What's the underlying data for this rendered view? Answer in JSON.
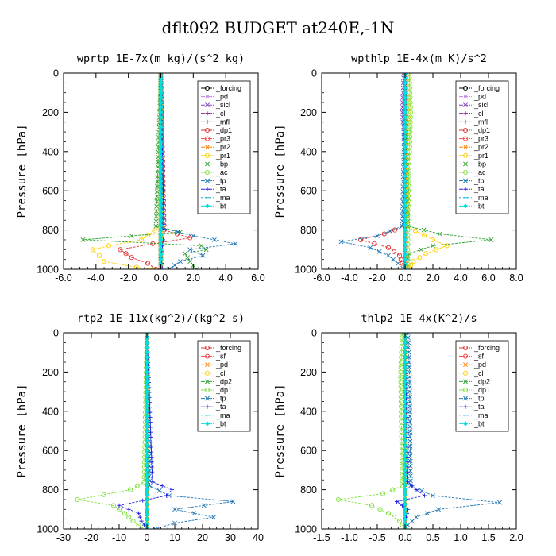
{
  "page_title": "dflt092  BUDGET at240E,-1N",
  "chart_data": [
    {
      "type": "line",
      "title": "wprtp  1E-7x(m kg)/(s^2 kg)",
      "ylabel": "Pressure [hPa]",
      "xlim": [
        -6,
        6
      ],
      "ylim": [
        0,
        1000
      ],
      "y_inverted": true,
      "xticks": [
        "-6.0",
        "-4.0",
        "-2.0",
        "0.0",
        "2.0",
        "4.0",
        "6.0"
      ],
      "yticks": [
        "0",
        "200",
        "400",
        "600",
        "800",
        "1000"
      ],
      "legend_position": "top-right",
      "series": [
        {
          "name": "_forcing",
          "color": "#000000",
          "marker": "o",
          "y": [
            0,
            1000
          ],
          "x": [
            0,
            0
          ]
        },
        {
          "name": "_pd",
          "color": "#c080e0",
          "marker": "x",
          "y": [
            0,
            1000
          ],
          "x": [
            0,
            0
          ]
        },
        {
          "name": "_sicl",
          "color": "#8040c0",
          "marker": "x",
          "y": [
            0,
            1000
          ],
          "x": [
            0,
            0
          ]
        },
        {
          "name": "_cl",
          "color": "#800080",
          "marker": "+",
          "y": [
            0,
            1000
          ],
          "x": [
            0,
            0
          ]
        },
        {
          "name": "_mfl",
          "color": "#a02050",
          "marker": "+",
          "y": [
            0,
            1000
          ],
          "x": [
            0,
            0
          ]
        },
        {
          "name": "_dp1",
          "color": "#e03030",
          "marker": "o",
          "y": [
            0,
            800,
            840,
            870,
            900,
            940,
            970,
            1000
          ],
          "x": [
            0,
            0.2,
            1.8,
            -0.5,
            -2.5,
            -1.8,
            -0.8,
            -0.3
          ]
        },
        {
          "name": "_pr3",
          "color": "#ff4040",
          "marker": "o",
          "y": [
            0,
            1000
          ],
          "x": [
            0,
            0
          ]
        },
        {
          "name": "_pr2",
          "color": "#ff8000",
          "marker": "x",
          "y": [
            0,
            1000
          ],
          "x": [
            0,
            0
          ]
        },
        {
          "name": "_pr1",
          "color": "#ffd000",
          "marker": "o",
          "y": [
            0,
            780,
            850,
            880,
            900,
            930,
            960,
            990,
            1000
          ],
          "x": [
            0,
            0,
            -1.2,
            -3.2,
            -4.2,
            -3.8,
            -3.5,
            -1.5,
            -0.5
          ]
        },
        {
          "name": "_bp",
          "color": "#30a030",
          "marker": "x",
          "y": [
            0,
            780,
            810,
            850,
            880,
            900,
            920,
            960,
            1000
          ],
          "x": [
            0,
            -0.3,
            1.2,
            -4.8,
            2.5,
            2.8,
            1.5,
            1.8,
            2.2
          ]
        },
        {
          "name": "_ac",
          "color": "#80e040",
          "marker": "o",
          "y": [
            0,
            1000
          ],
          "x": [
            0,
            0
          ]
        },
        {
          "name": "_tp",
          "color": "#1f77b4",
          "marker": "x",
          "y": [
            0,
            790,
            830,
            870,
            900,
            930,
            960,
            1000
          ],
          "x": [
            0,
            0.1,
            2.0,
            4.6,
            1.8,
            2.6,
            1.2,
            0.5
          ]
        },
        {
          "name": "_ta",
          "color": "#2020e0",
          "marker": "+",
          "y": [
            0,
            820,
            880,
            940,
            1000
          ],
          "x": [
            0,
            0.2,
            0.1,
            0.0,
            0.1
          ]
        },
        {
          "name": "_ma",
          "color": "#00b0e0",
          "marker": "-",
          "y": [
            0,
            1000
          ],
          "x": [
            0,
            0
          ]
        },
        {
          "name": "_bt",
          "color": "#00e0e0",
          "marker": "D",
          "y": [
            0,
            1000
          ],
          "x": [
            0,
            0
          ]
        }
      ]
    },
    {
      "type": "line",
      "title": "wpthlp  1E-4x(m K)/s^2",
      "ylabel": "Pressure [hPa]",
      "xlim": [
        -6,
        8
      ],
      "ylim": [
        0,
        1000
      ],
      "y_inverted": true,
      "xticks": [
        "-6.0",
        "-4.0",
        "-2.0",
        "0.0",
        "2.0",
        "4.0",
        "6.0",
        "8.0"
      ],
      "yticks": [
        "0",
        "200",
        "400",
        "600",
        "800",
        "1000"
      ],
      "legend_position": "top-right",
      "series": [
        {
          "name": "_forcing",
          "color": "#000000",
          "marker": "o",
          "y": [
            0,
            1000
          ],
          "x": [
            0,
            0
          ]
        },
        {
          "name": "_pd",
          "color": "#c080e0",
          "marker": "x",
          "y": [
            0,
            1000
          ],
          "x": [
            0,
            0
          ]
        },
        {
          "name": "_sicl",
          "color": "#8040c0",
          "marker": "x",
          "y": [
            0,
            200,
            400,
            1000
          ],
          "x": [
            -0.1,
            -0.2,
            0,
            0
          ]
        },
        {
          "name": "_cl",
          "color": "#800080",
          "marker": "+",
          "y": [
            0,
            1000
          ],
          "x": [
            0,
            0
          ]
        },
        {
          "name": "_mfl",
          "color": "#a02050",
          "marker": "+",
          "y": [
            0,
            1000
          ],
          "x": [
            0,
            0
          ]
        },
        {
          "name": "_dp1",
          "color": "#e03030",
          "marker": "o",
          "y": [
            0,
            780,
            820,
            850,
            890,
            930,
            970,
            1000
          ],
          "x": [
            0,
            0,
            -1.5,
            -3.2,
            -1.2,
            -0.4,
            -0.2,
            0
          ]
        },
        {
          "name": "_pr3",
          "color": "#ff4040",
          "marker": "o",
          "y": [
            0,
            1000
          ],
          "x": [
            0,
            0
          ]
        },
        {
          "name": "_pr2",
          "color": "#ff8000",
          "marker": "x",
          "y": [
            0,
            1000
          ],
          "x": [
            0,
            0
          ]
        },
        {
          "name": "_pr1",
          "color": "#ffd000",
          "marker": "o",
          "y": [
            0,
            200,
            780,
            850,
            880,
            920,
            960,
            1000
          ],
          "x": [
            0.2,
            0.2,
            0.1,
            2.0,
            3.0,
            1.5,
            0.6,
            0.2
          ]
        },
        {
          "name": "_bp",
          "color": "#30a030",
          "marker": "x",
          "y": [
            0,
            780,
            820,
            850,
            880,
            920,
            1000
          ],
          "x": [
            0,
            0.2,
            2.5,
            6.2,
            2.0,
            0.3,
            0
          ]
        },
        {
          "name": "_ac",
          "color": "#80e040",
          "marker": "o",
          "y": [
            0,
            200,
            700,
            1000
          ],
          "x": [
            0.3,
            0.4,
            0.2,
            0.2
          ]
        },
        {
          "name": "_tp",
          "color": "#1f77b4",
          "marker": "x",
          "y": [
            0,
            780,
            830,
            860,
            890,
            930,
            970,
            1000
          ],
          "x": [
            0,
            -0.2,
            -2.0,
            -4.6,
            -2.5,
            -1.2,
            -0.5,
            -0.1
          ]
        },
        {
          "name": "_ta",
          "color": "#2020e0",
          "marker": "+",
          "y": [
            0,
            1000
          ],
          "x": [
            0,
            0
          ]
        },
        {
          "name": "_ma",
          "color": "#00b0e0",
          "marker": "-",
          "y": [
            0,
            1000
          ],
          "x": [
            0,
            0
          ]
        },
        {
          "name": "_bt",
          "color": "#00e0e0",
          "marker": "D",
          "y": [
            0,
            1000
          ],
          "x": [
            0,
            0
          ]
        }
      ]
    },
    {
      "type": "line",
      "title": "rtp2  1E-11x(kg^2)/(kg^2 s)",
      "ylabel": "Pressure [hPa]",
      "xlim": [
        -30,
        40
      ],
      "ylim": [
        0,
        1000
      ],
      "y_inverted": true,
      "xticks": [
        "-30",
        "-20",
        "-10",
        "0",
        "10",
        "20",
        "30",
        "40"
      ],
      "yticks": [
        "0",
        "200",
        "400",
        "600",
        "800",
        "1000"
      ],
      "legend_position": "top-right",
      "series": [
        {
          "name": "_forcing",
          "color": "#e03030",
          "marker": "o",
          "y": [
            0,
            1000
          ],
          "x": [
            0,
            0
          ]
        },
        {
          "name": "_sf",
          "color": "#ff4040",
          "marker": "o",
          "y": [
            0,
            1000
          ],
          "x": [
            0,
            0
          ]
        },
        {
          "name": "_pd",
          "color": "#ff8000",
          "marker": "x",
          "y": [
            0,
            1000
          ],
          "x": [
            0,
            0
          ]
        },
        {
          "name": "_cl",
          "color": "#ffd000",
          "marker": "o",
          "y": [
            0,
            1000
          ],
          "x": [
            0,
            0
          ]
        },
        {
          "name": "_dp2",
          "color": "#30a030",
          "marker": "x",
          "y": [
            0,
            1000
          ],
          "x": [
            0,
            0
          ]
        },
        {
          "name": "_dp1",
          "color": "#80e040",
          "marker": "o",
          "y": [
            0,
            760,
            800,
            850,
            880,
            920,
            960,
            1000
          ],
          "x": [
            0,
            -1,
            -6,
            -25,
            -12,
            -8,
            -5,
            -1
          ]
        },
        {
          "name": "_tp",
          "color": "#1f77b4",
          "marker": "x",
          "y": [
            0,
            780,
            830,
            860,
            900,
            940,
            970,
            1000
          ],
          "x": [
            0,
            1,
            8,
            31,
            10,
            24,
            10,
            3
          ]
        },
        {
          "name": "_ta",
          "color": "#2020e0",
          "marker": "+",
          "y": [
            0,
            760,
            800,
            830,
            880,
            920,
            960,
            1000
          ],
          "x": [
            0,
            2,
            9,
            7,
            -10,
            -3,
            -2,
            0
          ]
        },
        {
          "name": "_ma",
          "color": "#00b0e0",
          "marker": "-",
          "y": [
            0,
            1000
          ],
          "x": [
            0,
            0
          ]
        },
        {
          "name": "_bt",
          "color": "#00e0e0",
          "marker": "D",
          "y": [
            0,
            1000
          ],
          "x": [
            0,
            0
          ]
        }
      ]
    },
    {
      "type": "line",
      "title": "thlp2  1E-4x(K^2)/s",
      "ylabel": "Pressure [hPa]",
      "xlim": [
        -1.5,
        2.0
      ],
      "ylim": [
        0,
        1000
      ],
      "y_inverted": true,
      "xticks": [
        "-1.5",
        "-1.0",
        "-0.5",
        "0.0",
        "0.5",
        "1.0",
        "1.5",
        "2.0"
      ],
      "yticks": [
        "0",
        "200",
        "400",
        "600",
        "800",
        "1000"
      ],
      "legend_position": "top-right",
      "series": [
        {
          "name": "_forcing",
          "color": "#e03030",
          "marker": "o",
          "y": [
            0,
            1000
          ],
          "x": [
            0,
            0
          ]
        },
        {
          "name": "_sf",
          "color": "#ff4040",
          "marker": "o",
          "y": [
            0,
            1000
          ],
          "x": [
            0,
            0
          ]
        },
        {
          "name": "_pd",
          "color": "#ff8000",
          "marker": "x",
          "y": [
            0,
            1000
          ],
          "x": [
            0,
            0
          ]
        },
        {
          "name": "_cl",
          "color": "#ffd000",
          "marker": "o",
          "y": [
            0,
            1000
          ],
          "x": [
            0,
            0
          ]
        },
        {
          "name": "_dp2",
          "color": "#30a030",
          "marker": "x",
          "y": [
            0,
            1000
          ],
          "x": [
            0,
            0
          ]
        },
        {
          "name": "_dp1",
          "color": "#80e040",
          "marker": "o",
          "y": [
            0,
            200,
            780,
            820,
            850,
            880,
            920,
            960,
            1000
          ],
          "x": [
            -0.05,
            -0.08,
            -0.05,
            -0.4,
            -1.2,
            -0.6,
            -0.3,
            -0.1,
            0
          ]
        },
        {
          "name": "_tp",
          "color": "#1f77b4",
          "marker": "x",
          "y": [
            0,
            200,
            780,
            830,
            865,
            900,
            940,
            980,
            1000
          ],
          "x": [
            0.05,
            0.08,
            0.1,
            0.5,
            1.7,
            0.6,
            0.2,
            0.05,
            0
          ]
        },
        {
          "name": "_ta",
          "color": "#2020e0",
          "marker": "+",
          "y": [
            0,
            760,
            800,
            830,
            860,
            900,
            940,
            1000
          ],
          "x": [
            0,
            0.05,
            0.2,
            0.35,
            -0.15,
            0.05,
            0.02,
            0
          ]
        },
        {
          "name": "_ma",
          "color": "#00b0e0",
          "marker": "-",
          "y": [
            0,
            1000
          ],
          "x": [
            0,
            0
          ]
        },
        {
          "name": "_bt",
          "color": "#00e0e0",
          "marker": "D",
          "y": [
            0,
            1000
          ],
          "x": [
            0,
            0
          ]
        }
      ]
    }
  ]
}
